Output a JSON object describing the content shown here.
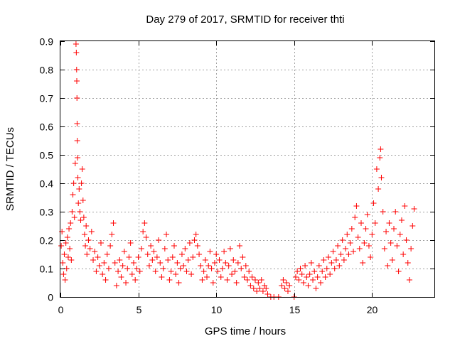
{
  "chart_data": {
    "type": "scatter",
    "title": "Day 279 of 2017, SRMTID for receiver thti",
    "xlabel": "GPS time / hours",
    "ylabel": "SRMTID / TECUs",
    "xlim": [
      0,
      24
    ],
    "ylim": [
      0,
      0.9
    ],
    "xticks": [
      0,
      5,
      10,
      15,
      20
    ],
    "xtick_labels": [
      "0",
      "5",
      "10",
      "15",
      "20"
    ],
    "yticks": [
      0,
      0.1,
      0.2,
      0.3,
      0.4,
      0.5,
      0.6,
      0.7,
      0.8,
      0.9
    ],
    "ytick_labels": [
      "0",
      "0.1",
      "0.2",
      "0.3",
      "0.4",
      "0.5",
      "0.6",
      "0.7",
      "0.8",
      "0.9"
    ],
    "grid": true,
    "marker": "plus",
    "color": "#ff0000",
    "series": [
      {
        "name": "SRMTID",
        "points": [
          [
            0.05,
            0.18
          ],
          [
            0.1,
            0.23
          ],
          [
            0.15,
            0.12
          ],
          [
            0.2,
            0.08
          ],
          [
            0.25,
            0.15
          ],
          [
            0.3,
            0.06
          ],
          [
            0.35,
            0.19
          ],
          [
            0.4,
            0.1
          ],
          [
            0.45,
            0.21
          ],
          [
            0.5,
            0.14
          ],
          [
            0.55,
            0.24
          ],
          [
            0.6,
            0.17
          ],
          [
            0.65,
            0.26
          ],
          [
            0.7,
            0.13
          ],
          [
            0.75,
            0.3
          ],
          [
            0.8,
            0.36
          ],
          [
            0.85,
            0.4
          ],
          [
            0.9,
            0.28
          ],
          [
            0.95,
            0.47
          ],
          [
            1.0,
            0.89
          ],
          [
            1.02,
            0.86
          ],
          [
            1.04,
            0.8
          ],
          [
            1.05,
            0.76
          ],
          [
            1.06,
            0.7
          ],
          [
            1.07,
            0.61
          ],
          [
            1.08,
            0.55
          ],
          [
            1.1,
            0.49
          ],
          [
            1.12,
            0.42
          ],
          [
            1.15,
            0.33
          ],
          [
            1.2,
            0.38
          ],
          [
            1.25,
            0.3
          ],
          [
            1.3,
            0.27
          ],
          [
            1.35,
            0.4
          ],
          [
            1.4,
            0.45
          ],
          [
            1.45,
            0.34
          ],
          [
            1.5,
            0.28
          ],
          [
            1.55,
            0.22
          ],
          [
            1.6,
            0.18
          ],
          [
            1.65,
            0.25
          ],
          [
            1.7,
            0.15
          ],
          [
            1.8,
            0.2
          ],
          [
            1.9,
            0.17
          ],
          [
            2.0,
            0.23
          ],
          [
            2.1,
            0.13
          ],
          [
            2.2,
            0.16
          ],
          [
            2.3,
            0.09
          ],
          [
            2.4,
            0.14
          ],
          [
            2.5,
            0.11
          ],
          [
            2.6,
            0.19
          ],
          [
            2.7,
            0.08
          ],
          [
            2.8,
            0.12
          ],
          [
            2.9,
            0.06
          ],
          [
            3.0,
            0.15
          ],
          [
            3.1,
            0.1
          ],
          [
            3.2,
            0.18
          ],
          [
            3.3,
            0.22
          ],
          [
            3.4,
            0.26
          ],
          [
            3.5,
            0.12
          ],
          [
            3.6,
            0.04
          ],
          [
            3.7,
            0.09
          ],
          [
            3.8,
            0.13
          ],
          [
            3.9,
            0.07
          ],
          [
            4.0,
            0.11
          ],
          [
            4.1,
            0.16
          ],
          [
            4.2,
            0.05
          ],
          [
            4.3,
            0.1
          ],
          [
            4.4,
            0.14
          ],
          [
            4.5,
            0.19
          ],
          [
            4.6,
            0.08
          ],
          [
            4.7,
            0.12
          ],
          [
            4.8,
            0.06
          ],
          [
            4.9,
            0.1
          ],
          [
            5.0,
            0.14
          ],
          [
            5.1,
            0.09
          ],
          [
            5.2,
            0.17
          ],
          [
            5.3,
            0.23
          ],
          [
            5.4,
            0.26
          ],
          [
            5.5,
            0.21
          ],
          [
            5.6,
            0.15
          ],
          [
            5.7,
            0.11
          ],
          [
            5.8,
            0.18
          ],
          [
            5.9,
            0.13
          ],
          [
            6.0,
            0.16
          ],
          [
            6.1,
            0.09
          ],
          [
            6.2,
            0.14
          ],
          [
            6.3,
            0.2
          ],
          [
            6.4,
            0.12
          ],
          [
            6.5,
            0.07
          ],
          [
            6.6,
            0.1
          ],
          [
            6.7,
            0.17
          ],
          [
            6.8,
            0.22
          ],
          [
            6.9,
            0.13
          ],
          [
            7.0,
            0.06
          ],
          [
            7.1,
            0.09
          ],
          [
            7.2,
            0.14
          ],
          [
            7.3,
            0.18
          ],
          [
            7.4,
            0.08
          ],
          [
            7.5,
            0.12
          ],
          [
            7.6,
            0.05
          ],
          [
            7.7,
            0.1
          ],
          [
            7.8,
            0.15
          ],
          [
            7.9,
            0.11
          ],
          [
            8.0,
            0.17
          ],
          [
            8.1,
            0.09
          ],
          [
            8.2,
            0.13
          ],
          [
            8.3,
            0.19
          ],
          [
            8.4,
            0.08
          ],
          [
            8.5,
            0.14
          ],
          [
            8.6,
            0.2
          ],
          [
            8.7,
            0.22
          ],
          [
            8.8,
            0.18
          ],
          [
            8.9,
            0.15
          ],
          [
            9.0,
            0.11
          ],
          [
            9.1,
            0.06
          ],
          [
            9.2,
            0.09
          ],
          [
            9.3,
            0.13
          ],
          [
            9.4,
            0.07
          ],
          [
            9.5,
            0.11
          ],
          [
            9.6,
            0.16
          ],
          [
            9.7,
            0.1
          ],
          [
            9.8,
            0.05
          ],
          [
            9.9,
            0.12
          ],
          [
            10.0,
            0.15
          ],
          [
            10.1,
            0.09
          ],
          [
            10.2,
            0.13
          ],
          [
            10.3,
            0.07
          ],
          [
            10.4,
            0.1
          ],
          [
            10.5,
            0.16
          ],
          [
            10.6,
            0.12
          ],
          [
            10.7,
            0.06
          ],
          [
            10.8,
            0.11
          ],
          [
            10.9,
            0.17
          ],
          [
            11.0,
            0.08
          ],
          [
            11.1,
            0.13
          ],
          [
            11.2,
            0.09
          ],
          [
            11.3,
            0.05
          ],
          [
            11.4,
            0.12
          ],
          [
            11.5,
            0.18
          ],
          [
            11.6,
            0.1
          ],
          [
            11.7,
            0.14
          ],
          [
            11.8,
            0.07
          ],
          [
            11.9,
            0.11
          ],
          [
            12.0,
            0.06
          ],
          [
            12.1,
            0.09
          ],
          [
            12.2,
            0.04
          ],
          [
            12.3,
            0.07
          ],
          [
            12.4,
            0.03
          ],
          [
            12.5,
            0.06
          ],
          [
            12.6,
            0.02
          ],
          [
            12.7,
            0.05
          ],
          [
            12.8,
            0.03
          ],
          [
            12.9,
            0.06
          ],
          [
            13.0,
            0.02
          ],
          [
            13.1,
            0.04
          ],
          [
            13.2,
            0.03
          ],
          [
            13.3,
            0.01
          ],
          [
            13.5,
            0.0
          ],
          [
            13.7,
            0.0
          ],
          [
            14.0,
            0.0
          ],
          [
            14.2,
            0.04
          ],
          [
            14.3,
            0.06
          ],
          [
            14.4,
            0.03
          ],
          [
            14.5,
            0.05
          ],
          [
            14.6,
            0.02
          ],
          [
            14.7,
            0.04
          ],
          [
            15.0,
            0.0
          ],
          [
            15.1,
            0.07
          ],
          [
            15.2,
            0.09
          ],
          [
            15.3,
            0.06
          ],
          [
            15.4,
            0.1
          ],
          [
            15.5,
            0.08
          ],
          [
            15.6,
            0.05
          ],
          [
            15.7,
            0.11
          ],
          [
            15.8,
            0.07
          ],
          [
            15.9,
            0.04
          ],
          [
            16.0,
            0.08
          ],
          [
            16.1,
            0.12
          ],
          [
            16.2,
            0.06
          ],
          [
            16.3,
            0.09
          ],
          [
            16.4,
            0.03
          ],
          [
            16.5,
            0.07
          ],
          [
            16.6,
            0.11
          ],
          [
            16.7,
            0.05
          ],
          [
            16.8,
            0.09
          ],
          [
            16.9,
            0.13
          ],
          [
            17.0,
            0.07
          ],
          [
            17.1,
            0.1
          ],
          [
            17.2,
            0.14
          ],
          [
            17.3,
            0.08
          ],
          [
            17.4,
            0.12
          ],
          [
            17.5,
            0.16
          ],
          [
            17.6,
            0.1
          ],
          [
            17.7,
            0.13
          ],
          [
            17.8,
            0.18
          ],
          [
            17.9,
            0.11
          ],
          [
            18.0,
            0.15
          ],
          [
            18.1,
            0.2
          ],
          [
            18.2,
            0.13
          ],
          [
            18.3,
            0.17
          ],
          [
            18.4,
            0.22
          ],
          [
            18.5,
            0.15
          ],
          [
            18.6,
            0.19
          ],
          [
            18.7,
            0.24
          ],
          [
            18.8,
            0.16
          ],
          [
            18.9,
            0.28
          ],
          [
            19.0,
            0.32
          ],
          [
            19.1,
            0.21
          ],
          [
            19.2,
            0.17
          ],
          [
            19.3,
            0.26
          ],
          [
            19.4,
            0.12
          ],
          [
            19.5,
            0.19
          ],
          [
            19.6,
            0.24
          ],
          [
            19.7,
            0.29
          ],
          [
            19.8,
            0.18
          ],
          [
            19.9,
            0.14
          ],
          [
            20.0,
            0.22
          ],
          [
            20.1,
            0.33
          ],
          [
            20.2,
            0.26
          ],
          [
            20.3,
            0.45
          ],
          [
            20.4,
            0.38
          ],
          [
            20.5,
            0.49
          ],
          [
            20.55,
            0.52
          ],
          [
            20.6,
            0.42
          ],
          [
            20.7,
            0.3
          ],
          [
            20.8,
            0.17
          ],
          [
            20.9,
            0.23
          ],
          [
            21.0,
            0.11
          ],
          [
            21.1,
            0.26
          ],
          [
            21.2,
            0.19
          ],
          [
            21.3,
            0.13
          ],
          [
            21.4,
            0.24
          ],
          [
            21.5,
            0.3
          ],
          [
            21.6,
            0.18
          ],
          [
            21.7,
            0.09
          ],
          [
            21.8,
            0.22
          ],
          [
            21.9,
            0.27
          ],
          [
            22.0,
            0.15
          ],
          [
            22.1,
            0.32
          ],
          [
            22.2,
            0.2
          ],
          [
            22.3,
            0.12
          ],
          [
            22.4,
            0.06
          ],
          [
            22.5,
            0.17
          ],
          [
            22.6,
            0.25
          ],
          [
            22.7,
            0.31
          ]
        ]
      }
    ]
  }
}
